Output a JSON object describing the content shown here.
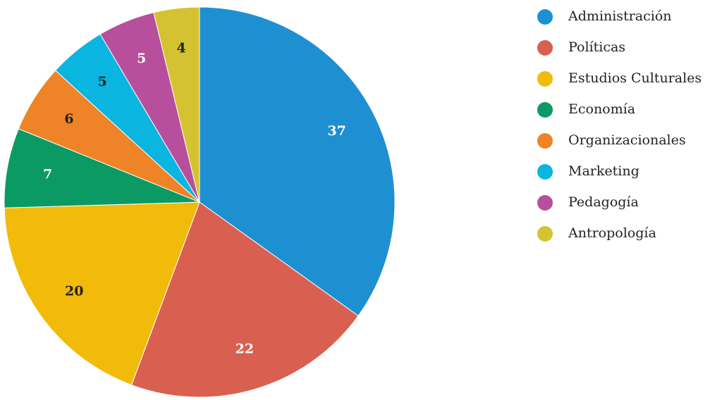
{
  "chart_data": {
    "type": "pie",
    "categories": [
      "Administración",
      "Políticas",
      "Estudios Culturales",
      "Economía",
      "Organizacionales",
      "Marketing",
      "Pedagogía",
      "Antropología"
    ],
    "values": [
      37,
      22,
      20,
      7,
      6,
      5,
      5,
      4
    ],
    "colors": [
      "#1e90d2",
      "#d96050",
      "#f2bb0a",
      "#0b9a63",
      "#ee8427",
      "#0ab5e0",
      "#b84f9c",
      "#d4c232"
    ],
    "legend": "right"
  }
}
